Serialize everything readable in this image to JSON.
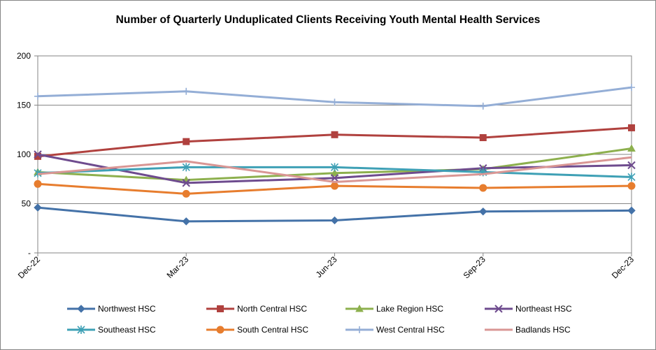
{
  "chart_data": {
    "type": "line",
    "title": "Number of Quarterly Unduplicated Clients Receiving Youth Mental Health Services",
    "xlabel": "",
    "ylabel": "",
    "categories": [
      "Dec-22",
      "Mar-23",
      "Jun-23",
      "Sep-23",
      "Dec-23"
    ],
    "ylim": [
      0,
      200
    ],
    "yticks": [
      {
        "value": 0,
        "label": "-"
      },
      {
        "value": 50,
        "label": "50"
      },
      {
        "value": 100,
        "label": "100"
      },
      {
        "value": 150,
        "label": "150"
      },
      {
        "value": 200,
        "label": "200"
      }
    ],
    "grid": true,
    "legend_position": "bottom",
    "series": [
      {
        "name": "Northwest HSC",
        "values": [
          46,
          32,
          33,
          42,
          43
        ],
        "color": "#4472A8",
        "marker": "diamond"
      },
      {
        "name": "North Central HSC",
        "values": [
          98,
          113,
          120,
          117,
          127
        ],
        "color": "#B0413E",
        "marker": "square"
      },
      {
        "name": "Lake Region HSC",
        "values": [
          82,
          74,
          81,
          85,
          106
        ],
        "color": "#8DB04E",
        "marker": "triangle"
      },
      {
        "name": "Northeast HSC",
        "values": [
          100,
          71,
          76,
          86,
          89
        ],
        "color": "#6E4B8E",
        "marker": "x"
      },
      {
        "name": "Southeast HSC",
        "values": [
          81,
          87,
          87,
          82,
          77
        ],
        "color": "#3EA0B5",
        "marker": "star"
      },
      {
        "name": "South Central HSC",
        "values": [
          70,
          60,
          68,
          66,
          68
        ],
        "color": "#E77D2E",
        "marker": "circle"
      },
      {
        "name": "West Central HSC",
        "values": [
          159,
          164,
          153,
          149,
          168
        ],
        "color": "#94AED6",
        "marker": "plus"
      },
      {
        "name": "Badlands HSC",
        "values": [
          80,
          93,
          72,
          80,
          97
        ],
        "color": "#D99694",
        "marker": "none"
      }
    ]
  }
}
